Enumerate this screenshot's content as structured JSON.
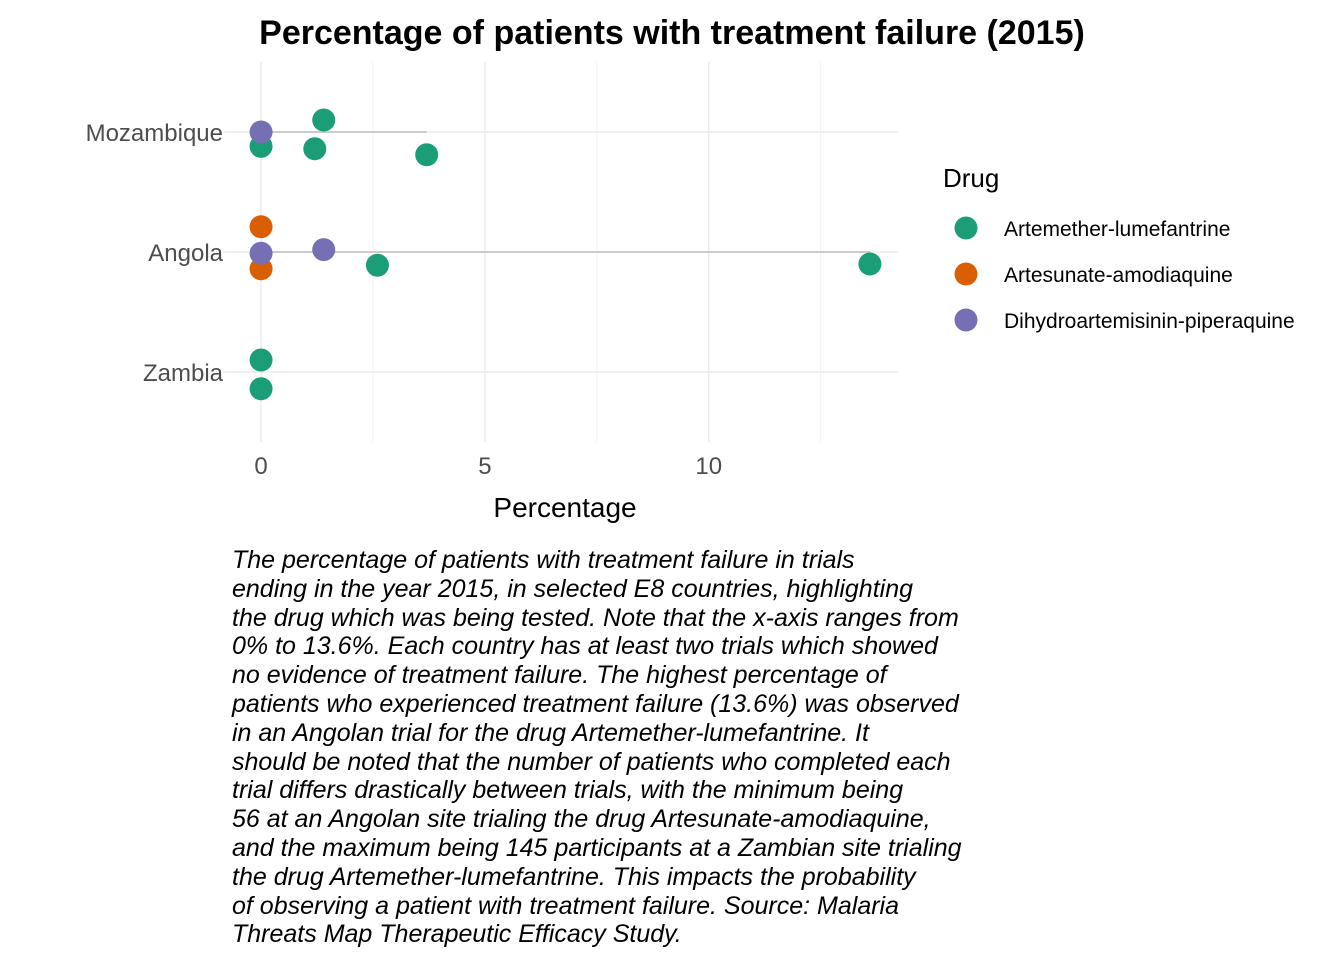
{
  "chart_data": {
    "type": "scatter",
    "title": "Percentage of patients with treatment failure (2015)",
    "xlabel": "Percentage",
    "ylabel": "",
    "xlim": [
      -0.85,
      14.25
    ],
    "x_ticks": [
      0,
      5,
      10
    ],
    "categories": [
      "Mozambique",
      "Angola",
      "Zambia"
    ],
    "grid": true,
    "legend": {
      "title": "Drug",
      "placement": "right",
      "entries": [
        {
          "name": "Artemether-lumefantrine",
          "color": "#1b9e77"
        },
        {
          "name": "Artesunate-amodiaquine",
          "color": "#d95f02"
        },
        {
          "name": "Dihydroartemisinin-piperaquine",
          "color": "#7570b3"
        }
      ]
    },
    "range_lines": [
      {
        "country": "Mozambique",
        "min": 0,
        "max": 3.7
      },
      {
        "country": "Angola",
        "min": 0,
        "max": 13.6
      },
      {
        "country": "Zambia",
        "min": 0,
        "max": 0
      }
    ],
    "series": [
      {
        "name": "Artemether-lumefantrine",
        "points": [
          {
            "country": "Mozambique",
            "x": 1.4,
            "jitter": 0.1
          },
          {
            "country": "Mozambique",
            "x": 0.0,
            "jitter": -0.12
          },
          {
            "country": "Mozambique",
            "x": 1.2,
            "jitter": -0.14
          },
          {
            "country": "Mozambique",
            "x": 3.7,
            "jitter": -0.19
          },
          {
            "country": "Angola",
            "x": 2.6,
            "jitter": -0.11
          },
          {
            "country": "Angola",
            "x": 13.6,
            "jitter": -0.1
          },
          {
            "country": "Zambia",
            "x": 0.0,
            "jitter": 0.1
          },
          {
            "country": "Zambia",
            "x": 0.0,
            "jitter": -0.14
          }
        ]
      },
      {
        "name": "Artesunate-amodiaquine",
        "points": [
          {
            "country": "Angola",
            "x": 0.0,
            "jitter": 0.21
          },
          {
            "country": "Angola",
            "x": 0.0,
            "jitter": -0.14
          }
        ]
      },
      {
        "name": "Dihydroartemisinin-piperaquine",
        "points": [
          {
            "country": "Mozambique",
            "x": 0.0,
            "jitter": 0.0
          },
          {
            "country": "Angola",
            "x": 1.4,
            "jitter": 0.02
          },
          {
            "country": "Angola",
            "x": 0.0,
            "jitter": -0.01
          }
        ]
      }
    ]
  },
  "caption": "The percentage of patients with treatment failure in trials\nending in the year 2015, in selected E8 countries, highlighting\nthe drug which was being tested. Note that the x-axis ranges from\n0% to 13.6%. Each country has at least two trials which showed\nno evidence of treatment failure. The highest percentage of\npatients who experienced treatment failure (13.6%) was observed\nin an Angolan trial for the drug Artemether-lumefantrine. It\nshould be noted that the number of patients who completed each\ntrial differs drastically between trials, with the minimum being\n56 at an Angolan site trialing the drug Artesunate-amodiaquine,\nand the maximum being 145 participants at a Zambian site trialing\nthe drug Artemether-lumefantrine. This impacts the probability\nof observing a patient with treatment failure. Source: Malaria\nThreats Map Therapeutic Efficacy Study."
}
